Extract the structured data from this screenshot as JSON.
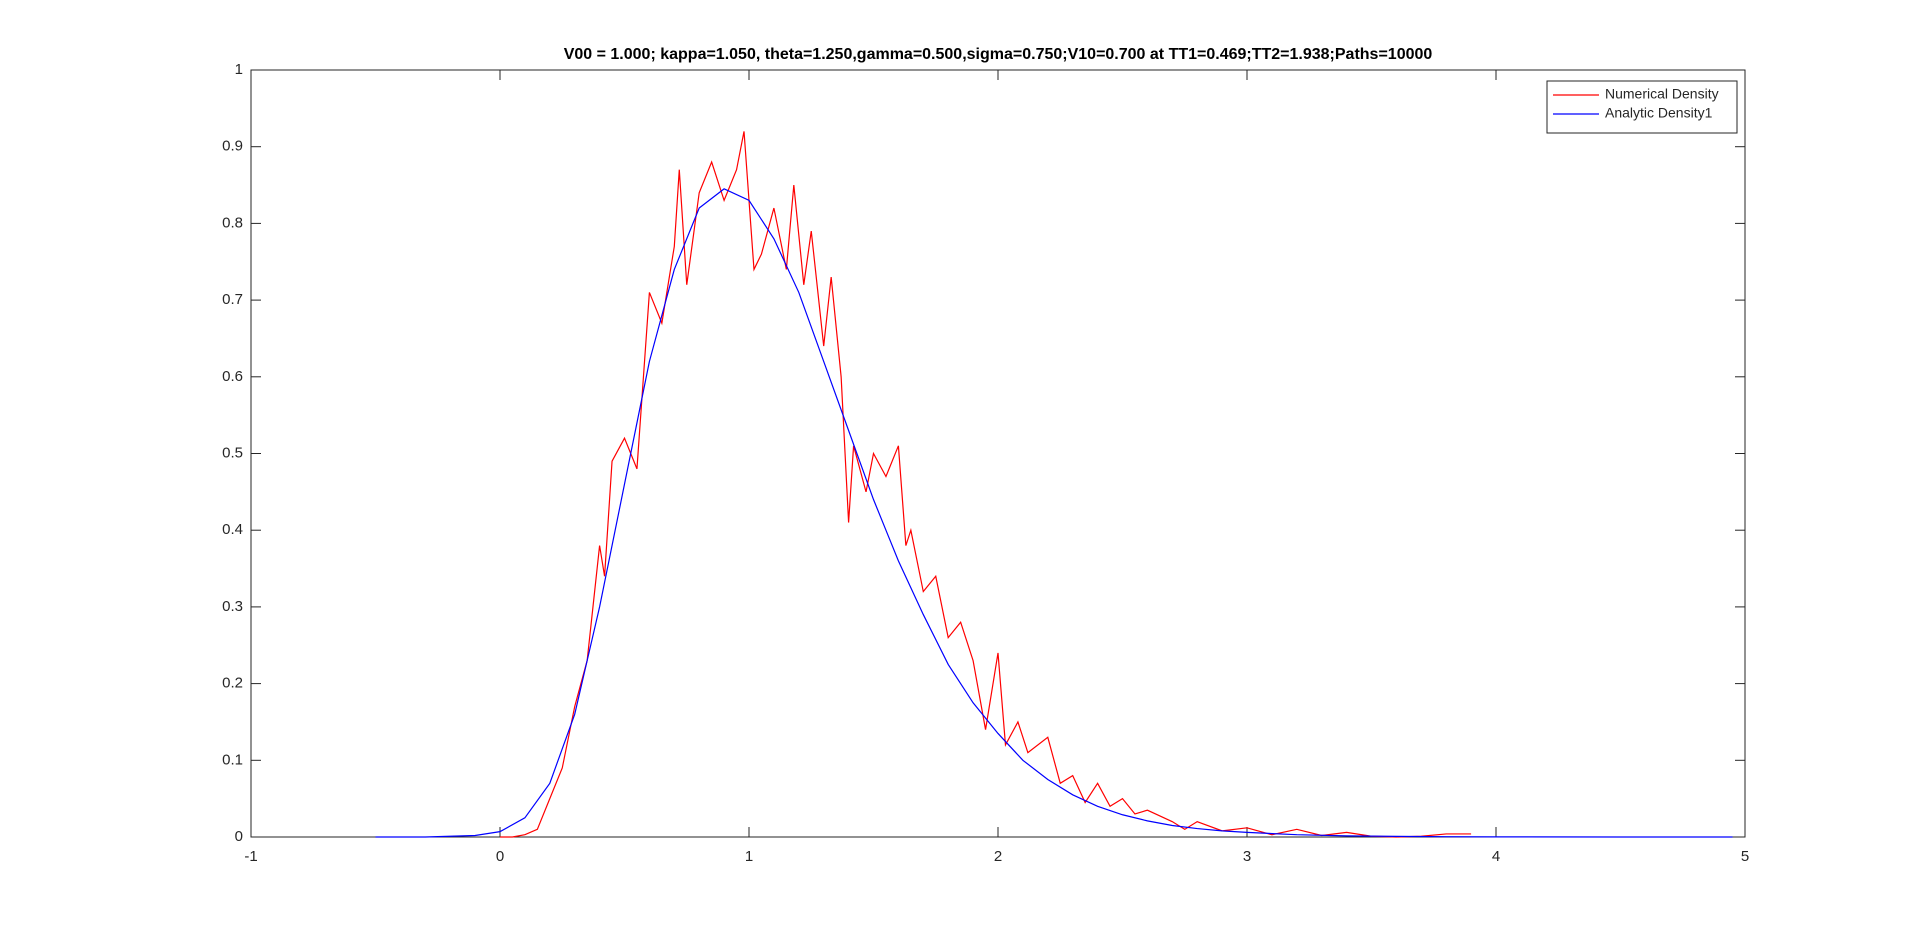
{
  "chart_data": {
    "type": "line",
    "title": "V00 = 1.000; kappa=1.050, theta=1.250,gamma=0.500,sigma=0.750;V10=0.700 at TT1=0.469;TT2=1.938;Paths=10000",
    "xlim": [
      -1,
      5
    ],
    "xticks": [
      -1,
      0,
      1,
      2,
      3,
      4,
      5
    ],
    "ylim": [
      0,
      1
    ],
    "yticks": [
      0,
      0.1,
      0.2,
      0.3,
      0.4,
      0.5,
      0.6,
      0.7,
      0.8,
      0.9,
      1
    ],
    "legend": "northeast",
    "series": [
      {
        "name": "Numerical Density",
        "color": "#ff0000",
        "x": [
          0,
          0.05,
          0.1,
          0.15,
          0.2,
          0.25,
          0.3,
          0.35,
          0.4,
          0.42,
          0.45,
          0.5,
          0.55,
          0.6,
          0.65,
          0.7,
          0.72,
          0.75,
          0.8,
          0.85,
          0.9,
          0.95,
          0.98,
          1.02,
          1.05,
          1.1,
          1.15,
          1.18,
          1.22,
          1.25,
          1.3,
          1.33,
          1.37,
          1.4,
          1.42,
          1.47,
          1.5,
          1.55,
          1.6,
          1.63,
          1.65,
          1.7,
          1.75,
          1.8,
          1.85,
          1.9,
          1.95,
          2.0,
          2.03,
          2.08,
          2.12,
          2.2,
          2.25,
          2.3,
          2.35,
          2.4,
          2.45,
          2.5,
          2.55,
          2.6,
          2.7,
          2.75,
          2.8,
          2.9,
          3.0,
          3.1,
          3.2,
          3.3,
          3.4,
          3.5,
          3.6,
          3.7,
          3.8,
          3.9
        ],
        "values": [
          0,
          0,
          0.003,
          0.01,
          0.05,
          0.09,
          0.17,
          0.23,
          0.38,
          0.34,
          0.49,
          0.52,
          0.48,
          0.71,
          0.67,
          0.77,
          0.87,
          0.72,
          0.84,
          0.88,
          0.83,
          0.87,
          0.92,
          0.74,
          0.76,
          0.82,
          0.74,
          0.85,
          0.72,
          0.79,
          0.64,
          0.73,
          0.6,
          0.41,
          0.51,
          0.45,
          0.5,
          0.47,
          0.51,
          0.38,
          0.4,
          0.32,
          0.34,
          0.26,
          0.28,
          0.23,
          0.14,
          0.24,
          0.12,
          0.15,
          0.11,
          0.13,
          0.07,
          0.08,
          0.045,
          0.07,
          0.04,
          0.05,
          0.03,
          0.035,
          0.02,
          0.01,
          0.02,
          0.008,
          0.012,
          0.003,
          0.01,
          0.002,
          0.006,
          0.001,
          0,
          0.001,
          0.004,
          0.004
        ]
      },
      {
        "name": "Analytic Density1",
        "color": "#0000ff",
        "x": [
          -0.5,
          -0.4,
          -0.3,
          -0.2,
          -0.1,
          0,
          0.1,
          0.2,
          0.3,
          0.4,
          0.5,
          0.6,
          0.7,
          0.8,
          0.9,
          1.0,
          1.1,
          1.2,
          1.3,
          1.4,
          1.5,
          1.6,
          1.7,
          1.8,
          1.9,
          2.0,
          2.1,
          2.2,
          2.3,
          2.4,
          2.5,
          2.6,
          2.7,
          2.8,
          2.9,
          3.0,
          3.2,
          3.4,
          3.6,
          3.8,
          4.0,
          4.5,
          4.95
        ],
        "values": [
          0,
          0,
          0,
          0.001,
          0.002,
          0.007,
          0.025,
          0.07,
          0.16,
          0.3,
          0.46,
          0.62,
          0.74,
          0.82,
          0.845,
          0.83,
          0.78,
          0.71,
          0.62,
          0.53,
          0.44,
          0.36,
          0.29,
          0.225,
          0.175,
          0.135,
          0.1,
          0.075,
          0.055,
          0.04,
          0.029,
          0.021,
          0.015,
          0.011,
          0.008,
          0.006,
          0.003,
          0.0015,
          0.0008,
          0.0004,
          0.0002,
          0,
          0
        ]
      }
    ]
  }
}
